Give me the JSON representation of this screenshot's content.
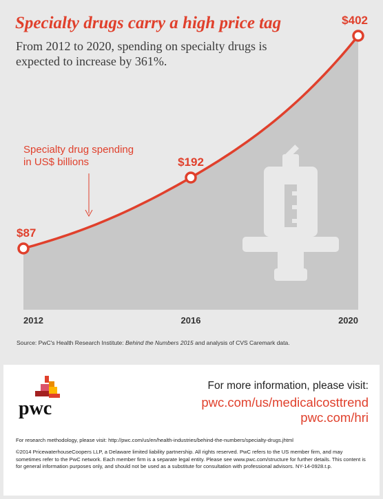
{
  "header": {
    "title": "Specialty drugs carry a high price tag",
    "subtitle": "From 2012 to 2020, spending on specialty drugs is expected to increase by 361%."
  },
  "chart_data": {
    "type": "area",
    "categories": [
      "2012",
      "2016",
      "2020"
    ],
    "x": [
      2012,
      2016,
      2020
    ],
    "values": [
      87,
      192,
      402
    ],
    "value_labels": [
      "$87",
      "$192",
      "$402"
    ],
    "annotation": "Specialty drug spending in US$ billions",
    "ylim": [
      0,
      402
    ],
    "grid": false,
    "line_color": "#e0402c",
    "area_color": "#c8c8c8"
  },
  "source": {
    "prefix": "Source: PwC's Health Research Institute: ",
    "title": "Behind the Numbers 2015",
    "suffix": " and analysis of CVS Caremark data."
  },
  "footer": {
    "logo_text": "pwc",
    "more_info": "For more information, please visit:",
    "link1": "pwc.com/us/medicalcosttrend",
    "link2": "pwc.com/hri",
    "methodology": "For research methodology, please visit: http://pwc.com/us/en/health-industries/behind-the-numbers/specialty-drugs.jhtml",
    "legal": "©2014 PricewaterhouseCoopers LLP, a Delaware limited liability partnership. All rights reserved. PwC refers to the US member firm, and may sometimes refer to the PwC network. Each member firm is a separate legal entity. Please see www.pwc.com/structure for further details. This content is for general information purposes only, and should not be used as a substitute for consultation with professional advisors. NY-14-0928.t.p."
  },
  "colors": {
    "accent": "#e0402c",
    "background": "#e9e9e9"
  }
}
